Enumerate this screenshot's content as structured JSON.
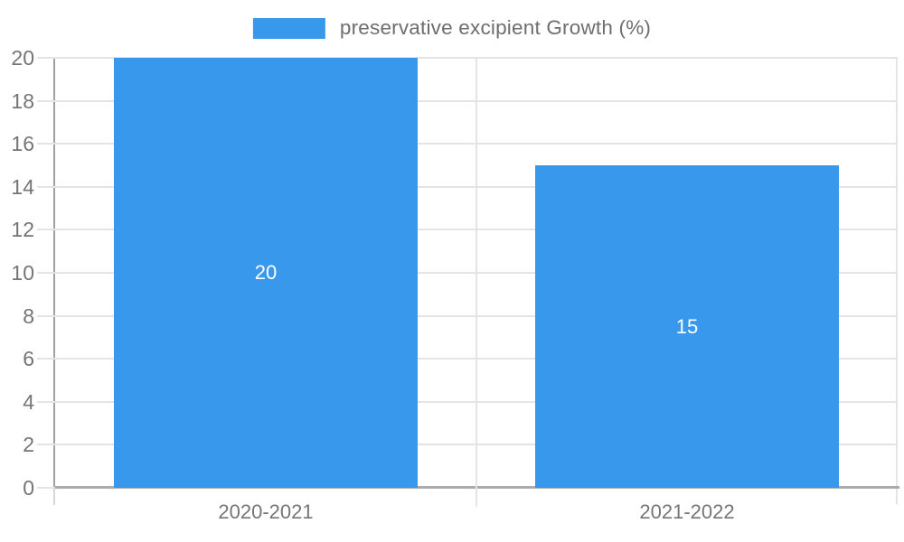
{
  "chart_data": {
    "type": "bar",
    "title": "",
    "xlabel": "",
    "ylabel": "",
    "categories": [
      "2020-2021",
      "2021-2022"
    ],
    "series": [
      {
        "name": "preservative excipient Growth (%)",
        "values": [
          20,
          15
        ]
      }
    ],
    "data_labels": [
      "20",
      "15"
    ],
    "ylim": [
      0,
      20
    ],
    "y_ticks": [
      0,
      2,
      4,
      6,
      8,
      10,
      12,
      14,
      16,
      18,
      20
    ],
    "grid": "on",
    "legend_position": "top-center",
    "colors": {
      "bar": "#3899ec",
      "data_label": "#ffffff",
      "axis_label": "#757575",
      "legend_text": "#6e6e6e",
      "gridline": "#e4e4e4",
      "axis_line": "#a0a0a0",
      "baseline": "#ababab",
      "background": "#ffffff"
    }
  }
}
